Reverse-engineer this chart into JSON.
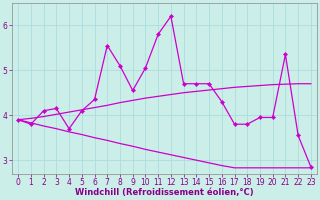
{
  "xlabel": "Windchill (Refroidissement éolien,°C)",
  "xlim": [
    -0.5,
    23.5
  ],
  "ylim": [
    2.7,
    6.5
  ],
  "yticks": [
    3,
    4,
    5,
    6
  ],
  "xticks": [
    0,
    1,
    2,
    3,
    4,
    5,
    6,
    7,
    8,
    9,
    10,
    11,
    12,
    13,
    14,
    15,
    16,
    17,
    18,
    19,
    20,
    21,
    22,
    23
  ],
  "bg_color": "#cceee8",
  "grid_color": "#aadddd",
  "line_color": "#cc00cc",
  "y_jagged": [
    3.9,
    3.8,
    4.1,
    4.15,
    3.7,
    4.1,
    4.35,
    5.55,
    5.1,
    4.55,
    5.05,
    5.8,
    6.2,
    4.7,
    4.7,
    4.7,
    4.3,
    3.8,
    3.8,
    3.95,
    3.95,
    5.35,
    3.55,
    2.85
  ],
  "y_upper_smooth": [
    3.9,
    3.93,
    3.97,
    4.02,
    4.07,
    4.12,
    4.17,
    4.22,
    4.28,
    4.33,
    4.38,
    4.42,
    4.46,
    4.5,
    4.53,
    4.56,
    4.59,
    4.62,
    4.64,
    4.66,
    4.68,
    4.69,
    4.7,
    4.7
  ],
  "y_lower_smooth": [
    3.9,
    3.83,
    3.76,
    3.7,
    3.63,
    3.57,
    3.5,
    3.44,
    3.37,
    3.31,
    3.24,
    3.18,
    3.12,
    3.06,
    3.0,
    2.94,
    2.88,
    2.83,
    2.83,
    2.83,
    2.83,
    2.83,
    2.83,
    2.83
  ],
  "xlabel_fontsize": 6,
  "tick_fontsize": 5.5
}
